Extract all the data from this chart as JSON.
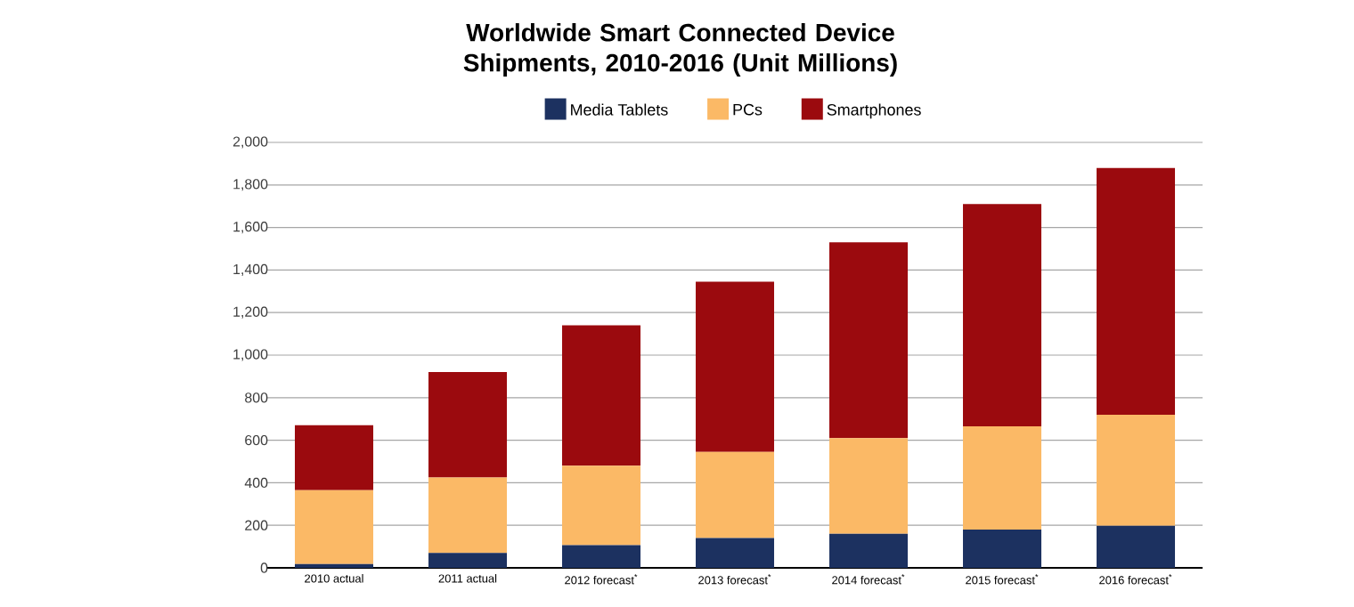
{
  "chart_data": {
    "type": "bar",
    "title": "Worldwide Smart Connected Device Shipments, 2010-2016 (Unit Millions)",
    "categories": [
      "2010 actual",
      "2011 actual",
      "2012 forecast$^{*}$",
      "2013 forecast$^{*}$",
      "2014 forecast$^{*}$",
      "2015 forecast$^{*}$",
      "2016 forecast$^{*}$"
    ],
    "stacked": true,
    "series": [
      {
        "name": "Media Tablets",
        "color": "#1c3160",
        "values": [
          18,
          70,
          107,
          140,
          160,
          180,
          198
        ]
      },
      {
        "name": "PCs",
        "color": "#fbb966",
        "values": [
          347,
          355,
          373,
          405,
          450,
          485,
          522
        ]
      },
      {
        "name": "Smartphones",
        "color": "#9b0a0e",
        "values": [
          305,
          495,
          660,
          800,
          920,
          1045,
          1160
        ]
      }
    ],
    "ylim": [
      0,
      2000
    ],
    "yticks": [
      0,
      200,
      400,
      600,
      800,
      {
        "value": 1000,
        "label": "1,000"
      },
      {
        "value": 1200,
        "label": "1,200"
      },
      {
        "value": 1400,
        "label": "1,400"
      },
      {
        "value": 1600,
        "label": "1,600"
      },
      {
        "value": 1800,
        "label": "1,800"
      },
      {
        "value": 2000,
        "label": "2,000"
      }
    ],
    "grid": "y",
    "legend": "top"
  }
}
